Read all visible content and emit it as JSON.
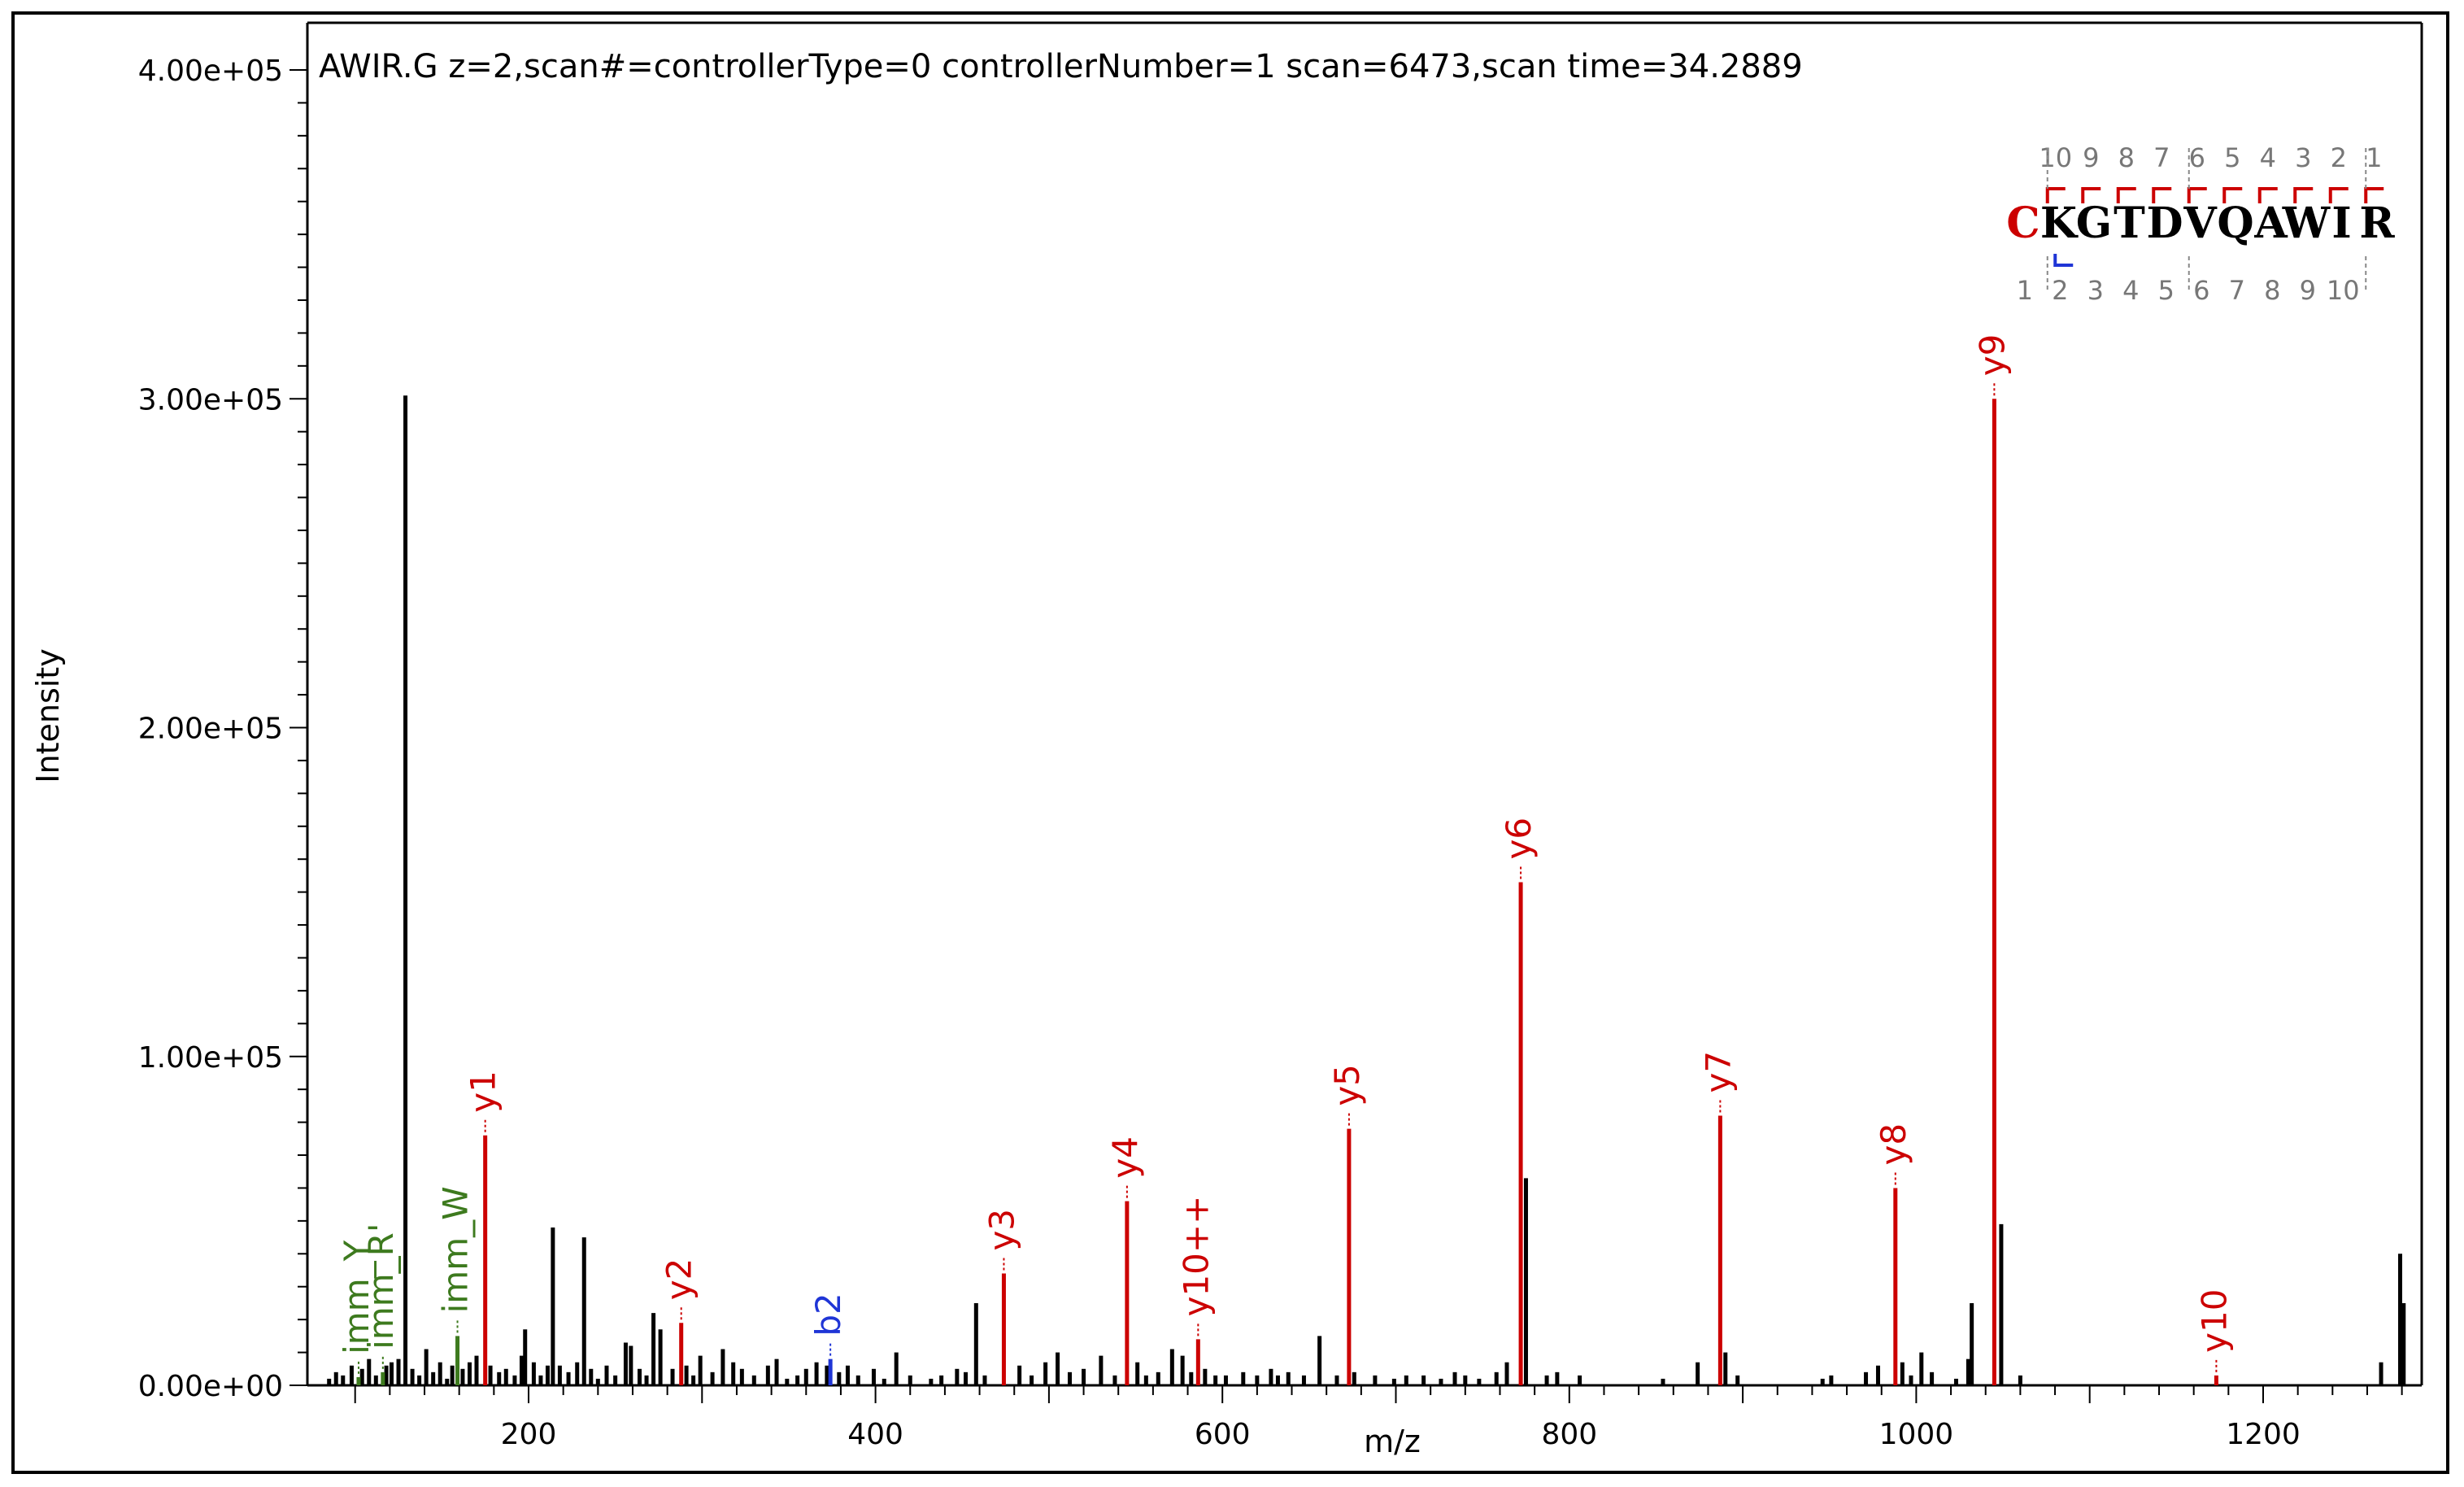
{
  "chart_data": {
    "type": "bar",
    "title": "AWIR.G z=2,scan#=controllerType=0 controllerNumber=1 scan=6473,scan time=34.2889",
    "xlabel": "m/z",
    "ylabel": "Intensity",
    "xlim": [
      72,
      1290
    ],
    "ylim": [
      0,
      400000
    ],
    "x_ticks": [
      200,
      400,
      600,
      800,
      1000,
      1200
    ],
    "x_tick_labels": [
      "200",
      "400",
      "600",
      "800",
      "1000",
      "1200"
    ],
    "y_ticks": [
      0,
      100000,
      200000,
      300000,
      400000
    ],
    "y_tick_labels": [
      "0.00e+00",
      "1.00e+05",
      "2.00e+05",
      "3.00e+05",
      "4.00e+05"
    ],
    "colors": {
      "unmatched": "#000000",
      "y_ion": "#cc0000",
      "b_ion": "#1f35d6",
      "immonium": "#3d7a1e",
      "sequence_grey": "#777777"
    },
    "annotated_peaks": [
      {
        "label": "imm_Y",
        "mz": 102,
        "intensity": 2500,
        "ion": "immonium"
      },
      {
        "label": "imm_R'",
        "mz": 116,
        "intensity": 4000,
        "ion": "immonium"
      },
      {
        "label": "imm_W",
        "mz": 159,
        "intensity": 15000,
        "ion": "immonium"
      },
      {
        "label": "y1",
        "mz": 175,
        "intensity": 76000,
        "ion": "y"
      },
      {
        "label": "y2",
        "mz": 288,
        "intensity": 19000,
        "ion": "y"
      },
      {
        "label": "b2",
        "mz": 374,
        "intensity": 8000,
        "ion": "b"
      },
      {
        "label": "y3",
        "mz": 474,
        "intensity": 34000,
        "ion": "y"
      },
      {
        "label": "y4",
        "mz": 545,
        "intensity": 56000,
        "ion": "y"
      },
      {
        "label": "y10++",
        "mz": 586,
        "intensity": 14000,
        "ion": "y"
      },
      {
        "label": "y5",
        "mz": 673,
        "intensity": 78000,
        "ion": "y"
      },
      {
        "label": "y6",
        "mz": 772,
        "intensity": 153000,
        "ion": "y"
      },
      {
        "label": "y7",
        "mz": 887,
        "intensity": 82000,
        "ion": "y"
      },
      {
        "label": "y8",
        "mz": 988,
        "intensity": 60000,
        "ion": "y"
      },
      {
        "label": "y9",
        "mz": 1045,
        "intensity": 300000,
        "ion": "y"
      },
      {
        "label": "y10",
        "mz": 1173,
        "intensity": 3000,
        "ion": "y"
      }
    ],
    "unlabeled_peaks": [
      [
        85,
        2000
      ],
      [
        89,
        4000
      ],
      [
        93,
        3000
      ],
      [
        98,
        6000
      ],
      [
        104,
        5000
      ],
      [
        108,
        8000
      ],
      [
        112,
        3000
      ],
      [
        118,
        6000
      ],
      [
        121,
        7000
      ],
      [
        125,
        8000
      ],
      [
        129,
        301000
      ],
      [
        133,
        5000
      ],
      [
        137,
        3000
      ],
      [
        141,
        11000
      ],
      [
        145,
        4000
      ],
      [
        149,
        7000
      ],
      [
        153,
        2000
      ],
      [
        156,
        6000
      ],
      [
        162,
        5000
      ],
      [
        166,
        7000
      ],
      [
        170,
        9000
      ],
      [
        178,
        6000
      ],
      [
        183,
        4000
      ],
      [
        187,
        5000
      ],
      [
        192,
        3000
      ],
      [
        196,
        9000
      ],
      [
        198,
        17000
      ],
      [
        203,
        7000
      ],
      [
        207,
        3000
      ],
      [
        211,
        6000
      ],
      [
        214,
        48000
      ],
      [
        218,
        6000
      ],
      [
        223,
        4000
      ],
      [
        228,
        7000
      ],
      [
        232,
        45000
      ],
      [
        236,
        5000
      ],
      [
        240,
        2000
      ],
      [
        245,
        6000
      ],
      [
        250,
        3000
      ],
      [
        256,
        13000
      ],
      [
        259,
        12000
      ],
      [
        264,
        5000
      ],
      [
        268,
        3000
      ],
      [
        272,
        22000
      ],
      [
        276,
        17000
      ],
      [
        283,
        5000
      ],
      [
        291,
        6000
      ],
      [
        295,
        3000
      ],
      [
        299,
        9000
      ],
      [
        306,
        4000
      ],
      [
        312,
        11000
      ],
      [
        318,
        7000
      ],
      [
        323,
        5000
      ],
      [
        330,
        3000
      ],
      [
        338,
        6000
      ],
      [
        343,
        8000
      ],
      [
        349,
        2000
      ],
      [
        355,
        3000
      ],
      [
        360,
        5000
      ],
      [
        366,
        7000
      ],
      [
        372,
        6000
      ],
      [
        379,
        4000
      ],
      [
        384,
        6000
      ],
      [
        390,
        3000
      ],
      [
        399,
        5000
      ],
      [
        405,
        2000
      ],
      [
        412,
        10000
      ],
      [
        420,
        3000
      ],
      [
        432,
        2000
      ],
      [
        438,
        3000
      ],
      [
        447,
        5000
      ],
      [
        452,
        4000
      ],
      [
        458,
        25000
      ],
      [
        463,
        3000
      ],
      [
        483,
        6000
      ],
      [
        490,
        3000
      ],
      [
        498,
        7000
      ],
      [
        505,
        10000
      ],
      [
        512,
        4000
      ],
      [
        520,
        5000
      ],
      [
        530,
        9000
      ],
      [
        538,
        3000
      ],
      [
        551,
        7000
      ],
      [
        556,
        3000
      ],
      [
        563,
        4000
      ],
      [
        571,
        11000
      ],
      [
        577,
        9000
      ],
      [
        582,
        4000
      ],
      [
        590,
        5000
      ],
      [
        596,
        3000
      ],
      [
        602,
        3000
      ],
      [
        612,
        4000
      ],
      [
        620,
        3000
      ],
      [
        628,
        5000
      ],
      [
        632,
        3000
      ],
      [
        638,
        4000
      ],
      [
        647,
        3000
      ],
      [
        656,
        15000
      ],
      [
        666,
        3000
      ],
      [
        676,
        4000
      ],
      [
        688,
        3000
      ],
      [
        699,
        2000
      ],
      [
        706,
        3000
      ],
      [
        716,
        3000
      ],
      [
        726,
        2000
      ],
      [
        734,
        4000
      ],
      [
        740,
        3000
      ],
      [
        748,
        2000
      ],
      [
        758,
        4000
      ],
      [
        764,
        7000
      ],
      [
        775,
        63000
      ],
      [
        787,
        3000
      ],
      [
        793,
        4000
      ],
      [
        806,
        3000
      ],
      [
        854,
        2000
      ],
      [
        874,
        7000
      ],
      [
        890,
        10000
      ],
      [
        897,
        3000
      ],
      [
        946,
        2000
      ],
      [
        951,
        3000
      ],
      [
        971,
        4000
      ],
      [
        978,
        6000
      ],
      [
        992,
        7000
      ],
      [
        997,
        3000
      ],
      [
        1003,
        10000
      ],
      [
        1009,
        4000
      ],
      [
        1023,
        2000
      ],
      [
        1030,
        8000
      ],
      [
        1032,
        25000
      ],
      [
        1049,
        49000
      ],
      [
        1060,
        3000
      ],
      [
        1268,
        7000
      ],
      [
        1279,
        40000
      ],
      [
        1281,
        25000
      ]
    ],
    "sequence_panel": {
      "residues": [
        "C",
        "K",
        "G",
        "T",
        "D",
        "V",
        "Q",
        "A",
        "W",
        "I",
        "R"
      ],
      "top_numbers": [
        "10",
        "9",
        "8",
        "7",
        "6",
        "5",
        "4",
        "3",
        "2",
        "1"
      ],
      "bottom_numbers": [
        "1",
        "2",
        "3",
        "4",
        "5",
        "6",
        "7",
        "8",
        "9",
        "10"
      ]
    }
  }
}
